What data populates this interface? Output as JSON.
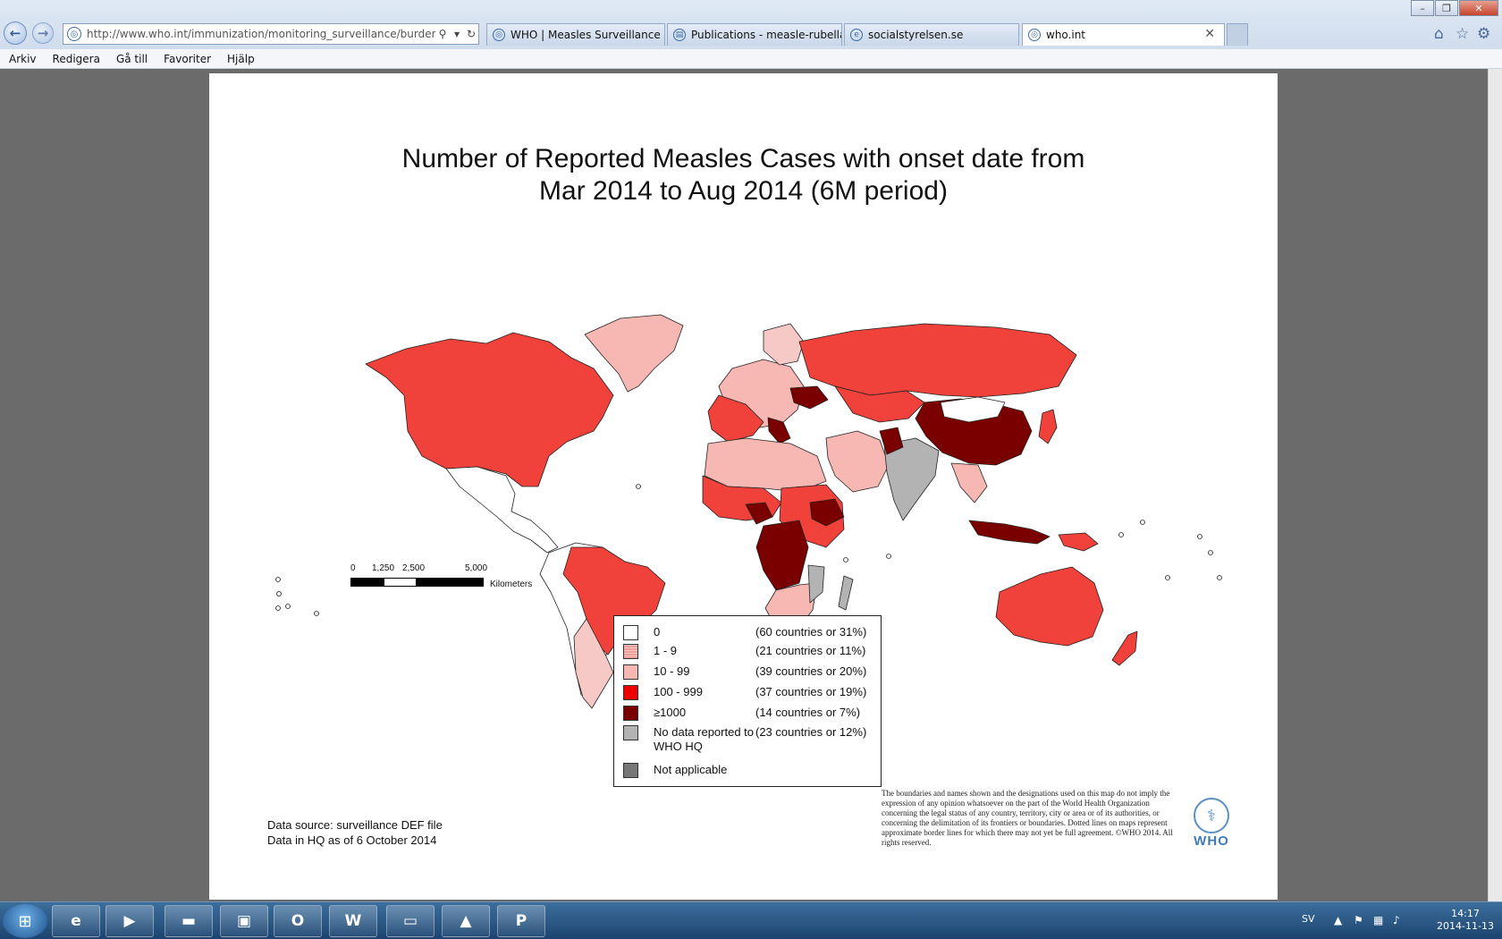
{
  "browser": {
    "address_url": "http://www.who.int/immunization/monitoring_surveillance/burden/vpd/",
    "tabs": [
      {
        "label": "WHO | Measles Surveillance Da..."
      },
      {
        "label": "Publications - measle-rubella-..."
      },
      {
        "label": "socialstyrelsen.se"
      },
      {
        "label": "who.int",
        "active": true
      }
    ],
    "menu": [
      "Arkiv",
      "Redigera",
      "Gå till",
      "Favoriter",
      "Hjälp"
    ]
  },
  "map": {
    "title_line1": "Number of Reported Measles Cases with onset date from",
    "title_line2": "Mar 2014 to Aug 2014 (6M period)",
    "legend": [
      {
        "label": "0",
        "count": "(60 countries or 31%)",
        "color": "#ffffff"
      },
      {
        "label": "1 - 9",
        "count": "(21 countries or 11%)",
        "color": "#f6c9c6"
      },
      {
        "label": "10 - 99",
        "count": "(39 countries or 20%)",
        "color": "#f7b7b3"
      },
      {
        "label": "100 - 999",
        "count": "(37 countries or 19%)",
        "color": "#ee0000"
      },
      {
        "label": "≥1000",
        "count": "(14 countries or 7%)",
        "color": "#7a0000"
      },
      {
        "label": "No data reported to WHO HQ",
        "count": "(23 countries or 12%)",
        "color": "#b3b3b3"
      },
      {
        "label": "Not applicable",
        "count": "",
        "color": "#777777"
      }
    ],
    "scale": {
      "ticks": [
        "0",
        "1,250",
        "2,500",
        "5,000"
      ],
      "unit": "Kilometers"
    },
    "source_line1": "Data source: surveillance DEF file",
    "source_line2": "Data in HQ as of 6 October 2014",
    "disclaimer": "The boundaries and names shown and the designations used on this map do not imply the expression of any opinion whatsoever on the part of the World Health Organization concerning the legal status of any country, territory, city or area or of its authorities, or concerning the delimitation of its frontiers or boundaries.  Dotted lines on maps represent approximate border lines for which there may not yet be full agreement. ©WHO 2014. All rights reserved.",
    "who_logo_text": "WHO"
  },
  "taskbar": {
    "language": "SV",
    "time": "14:17",
    "date": "2014-11-13"
  },
  "colors": {
    "fill_100_999": "#f0413a",
    "fill_1000": "#7a0000",
    "no_data": "#b3b3b3",
    "accent": "#3f7cb5"
  }
}
